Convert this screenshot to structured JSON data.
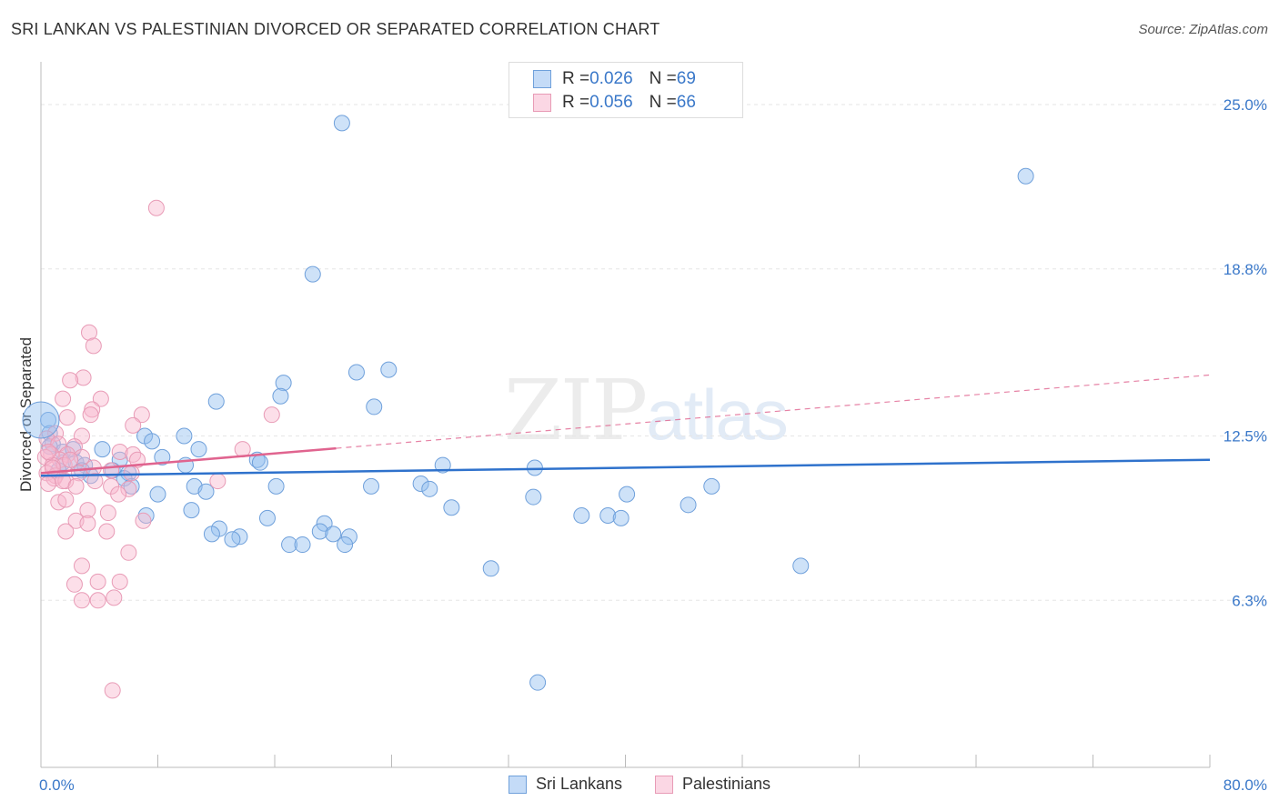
{
  "title": "SRI LANKAN VS PALESTINIAN DIVORCED OR SEPARATED CORRELATION CHART",
  "source": "Source: ZipAtlas.com",
  "watermark": {
    "zip": "ZIP",
    "atlas": "atlas"
  },
  "colors": {
    "blue_fill": "rgba(147,190,240,0.45)",
    "blue_stroke": "#6fa0db",
    "blue_line": "#2f72cc",
    "pink_fill": "rgba(248,183,206,0.45)",
    "pink_stroke": "#e89bb6",
    "pink_line": "#e0648f",
    "axis_label": "#3a78c9",
    "grid": "#e6e6e6"
  },
  "stats": {
    "blue": {
      "r_label": "R = ",
      "r_value": "0.026",
      "n_label": "N = ",
      "n_value": "69"
    },
    "pink": {
      "r_label": "R = ",
      "r_value": "0.056",
      "n_label": "N = ",
      "n_value": "66"
    }
  },
  "legend": {
    "blue": "Sri Lankans",
    "pink": "Palestinians"
  },
  "chart_data": {
    "type": "scatter",
    "title": "SRI LANKAN VS PALESTINIAN DIVORCED OR SEPARATED CORRELATION CHART",
    "xlabel": "",
    "ylabel": "Divorced or Separated",
    "xlim": [
      0,
      80
    ],
    "ylim": [
      0,
      26.2
    ],
    "x_tick_labels": [
      {
        "value": 0,
        "label": "0.0%"
      },
      {
        "value": 80,
        "label": "80.0%"
      }
    ],
    "x_minor_ticks": [
      8,
      16,
      24,
      32,
      40,
      48,
      56,
      64,
      72,
      80
    ],
    "y_ticks": [
      {
        "value": 6.3,
        "label": "6.3%"
      },
      {
        "value": 12.5,
        "label": "12.5%"
      },
      {
        "value": 18.8,
        "label": "18.8%"
      },
      {
        "value": 25.0,
        "label": "25.0%"
      }
    ],
    "series": [
      {
        "name": "Sri Lankans",
        "color": "blue",
        "trend": {
          "x0": 0,
          "y0": 11.0,
          "x1": 80,
          "y1": 11.6,
          "solid_until": 80
        },
        "points": [
          [
            20.6,
            24.3
          ],
          [
            67.4,
            22.3
          ],
          [
            18.6,
            18.6
          ],
          [
            21.6,
            14.9
          ],
          [
            23.8,
            15.0
          ],
          [
            16.6,
            14.5
          ],
          [
            16.4,
            14.0
          ],
          [
            12.0,
            13.8
          ],
          [
            22.8,
            13.6
          ],
          [
            0.5,
            13.1
          ],
          [
            7.1,
            12.5
          ],
          [
            9.8,
            12.5
          ],
          [
            7.6,
            12.3
          ],
          [
            0.6,
            12.6
          ],
          [
            0.8,
            12.2
          ],
          [
            1.5,
            11.9
          ],
          [
            2.2,
            12.0
          ],
          [
            4.2,
            12.0
          ],
          [
            10.8,
            12.0
          ],
          [
            1.5,
            11.5
          ],
          [
            2.4,
            11.5
          ],
          [
            5.4,
            11.6
          ],
          [
            8.3,
            11.7
          ],
          [
            14.8,
            11.6
          ],
          [
            3.0,
            11.4
          ],
          [
            9.9,
            11.4
          ],
          [
            15.0,
            11.5
          ],
          [
            27.5,
            11.4
          ],
          [
            33.8,
            11.3
          ],
          [
            1.2,
            11.2
          ],
          [
            2.8,
            11.2
          ],
          [
            4.9,
            11.2
          ],
          [
            6.0,
            11.1
          ],
          [
            3.4,
            11.0
          ],
          [
            5.7,
            10.9
          ],
          [
            6.2,
            10.6
          ],
          [
            10.5,
            10.6
          ],
          [
            16.1,
            10.6
          ],
          [
            22.6,
            10.6
          ],
          [
            26.0,
            10.7
          ],
          [
            26.6,
            10.5
          ],
          [
            45.9,
            10.6
          ],
          [
            11.3,
            10.4
          ],
          [
            8.0,
            10.3
          ],
          [
            40.1,
            10.3
          ],
          [
            33.7,
            10.2
          ],
          [
            28.1,
            9.8
          ],
          [
            44.3,
            9.9
          ],
          [
            7.2,
            9.5
          ],
          [
            10.3,
            9.7
          ],
          [
            15.5,
            9.4
          ],
          [
            37.0,
            9.5
          ],
          [
            38.8,
            9.5
          ],
          [
            39.7,
            9.4
          ],
          [
            12.2,
            9.0
          ],
          [
            11.7,
            8.8
          ],
          [
            19.4,
            9.2
          ],
          [
            19.1,
            8.9
          ],
          [
            20.0,
            8.8
          ],
          [
            13.6,
            8.7
          ],
          [
            13.1,
            8.6
          ],
          [
            21.1,
            8.7
          ],
          [
            17.0,
            8.4
          ],
          [
            17.9,
            8.4
          ],
          [
            20.8,
            8.4
          ],
          [
            52.0,
            7.6
          ],
          [
            30.8,
            7.5
          ],
          [
            34.0,
            3.2
          ],
          [
            0.6,
            12.1
          ]
        ]
      },
      {
        "name": "Palestinians",
        "color": "pink",
        "trend": {
          "x0": 0,
          "y0": 11.1,
          "x1": 80,
          "y1": 14.8,
          "solid_until": 20.2
        },
        "points": [
          [
            7.9,
            21.1
          ],
          [
            3.3,
            16.4
          ],
          [
            3.6,
            15.9
          ],
          [
            2.9,
            14.7
          ],
          [
            2.0,
            14.6
          ],
          [
            1.5,
            13.9
          ],
          [
            4.1,
            13.9
          ],
          [
            3.5,
            13.5
          ],
          [
            6.9,
            13.3
          ],
          [
            3.4,
            13.3
          ],
          [
            1.8,
            13.2
          ],
          [
            15.8,
            13.3
          ],
          [
            6.3,
            12.9
          ],
          [
            1.0,
            12.6
          ],
          [
            2.8,
            12.5
          ],
          [
            0.4,
            12.4
          ],
          [
            1.2,
            12.2
          ],
          [
            2.3,
            12.1
          ],
          [
            13.8,
            12.0
          ],
          [
            5.4,
            11.9
          ],
          [
            6.3,
            11.8
          ],
          [
            0.7,
            11.8
          ],
          [
            1.8,
            11.8
          ],
          [
            2.8,
            11.7
          ],
          [
            0.3,
            11.7
          ],
          [
            1.3,
            11.6
          ],
          [
            6.6,
            11.6
          ],
          [
            0.8,
            11.4
          ],
          [
            1.6,
            11.4
          ],
          [
            3.6,
            11.3
          ],
          [
            4.8,
            11.2
          ],
          [
            0.4,
            11.1
          ],
          [
            1.0,
            11.0
          ],
          [
            2.6,
            11.1
          ],
          [
            6.2,
            11.1
          ],
          [
            0.9,
            10.9
          ],
          [
            1.7,
            10.8
          ],
          [
            3.7,
            10.8
          ],
          [
            12.1,
            10.8
          ],
          [
            0.5,
            10.7
          ],
          [
            1.5,
            10.8
          ],
          [
            2.4,
            10.6
          ],
          [
            4.8,
            10.6
          ],
          [
            6.0,
            10.5
          ],
          [
            5.3,
            10.3
          ],
          [
            1.2,
            10.0
          ],
          [
            1.7,
            10.1
          ],
          [
            3.2,
            9.7
          ],
          [
            4.6,
            9.6
          ],
          [
            7.0,
            9.3
          ],
          [
            2.4,
            9.3
          ],
          [
            3.2,
            9.2
          ],
          [
            1.7,
            8.9
          ],
          [
            4.5,
            8.9
          ],
          [
            6.0,
            8.1
          ],
          [
            2.8,
            7.6
          ],
          [
            5.4,
            7.0
          ],
          [
            3.9,
            7.0
          ],
          [
            2.3,
            6.9
          ],
          [
            5.0,
            6.4
          ],
          [
            2.8,
            6.3
          ],
          [
            3.9,
            6.3
          ],
          [
            0.5,
            11.9
          ],
          [
            4.9,
            2.9
          ],
          [
            2.0,
            11.6
          ],
          [
            0.8,
            11.3
          ]
        ]
      }
    ]
  }
}
